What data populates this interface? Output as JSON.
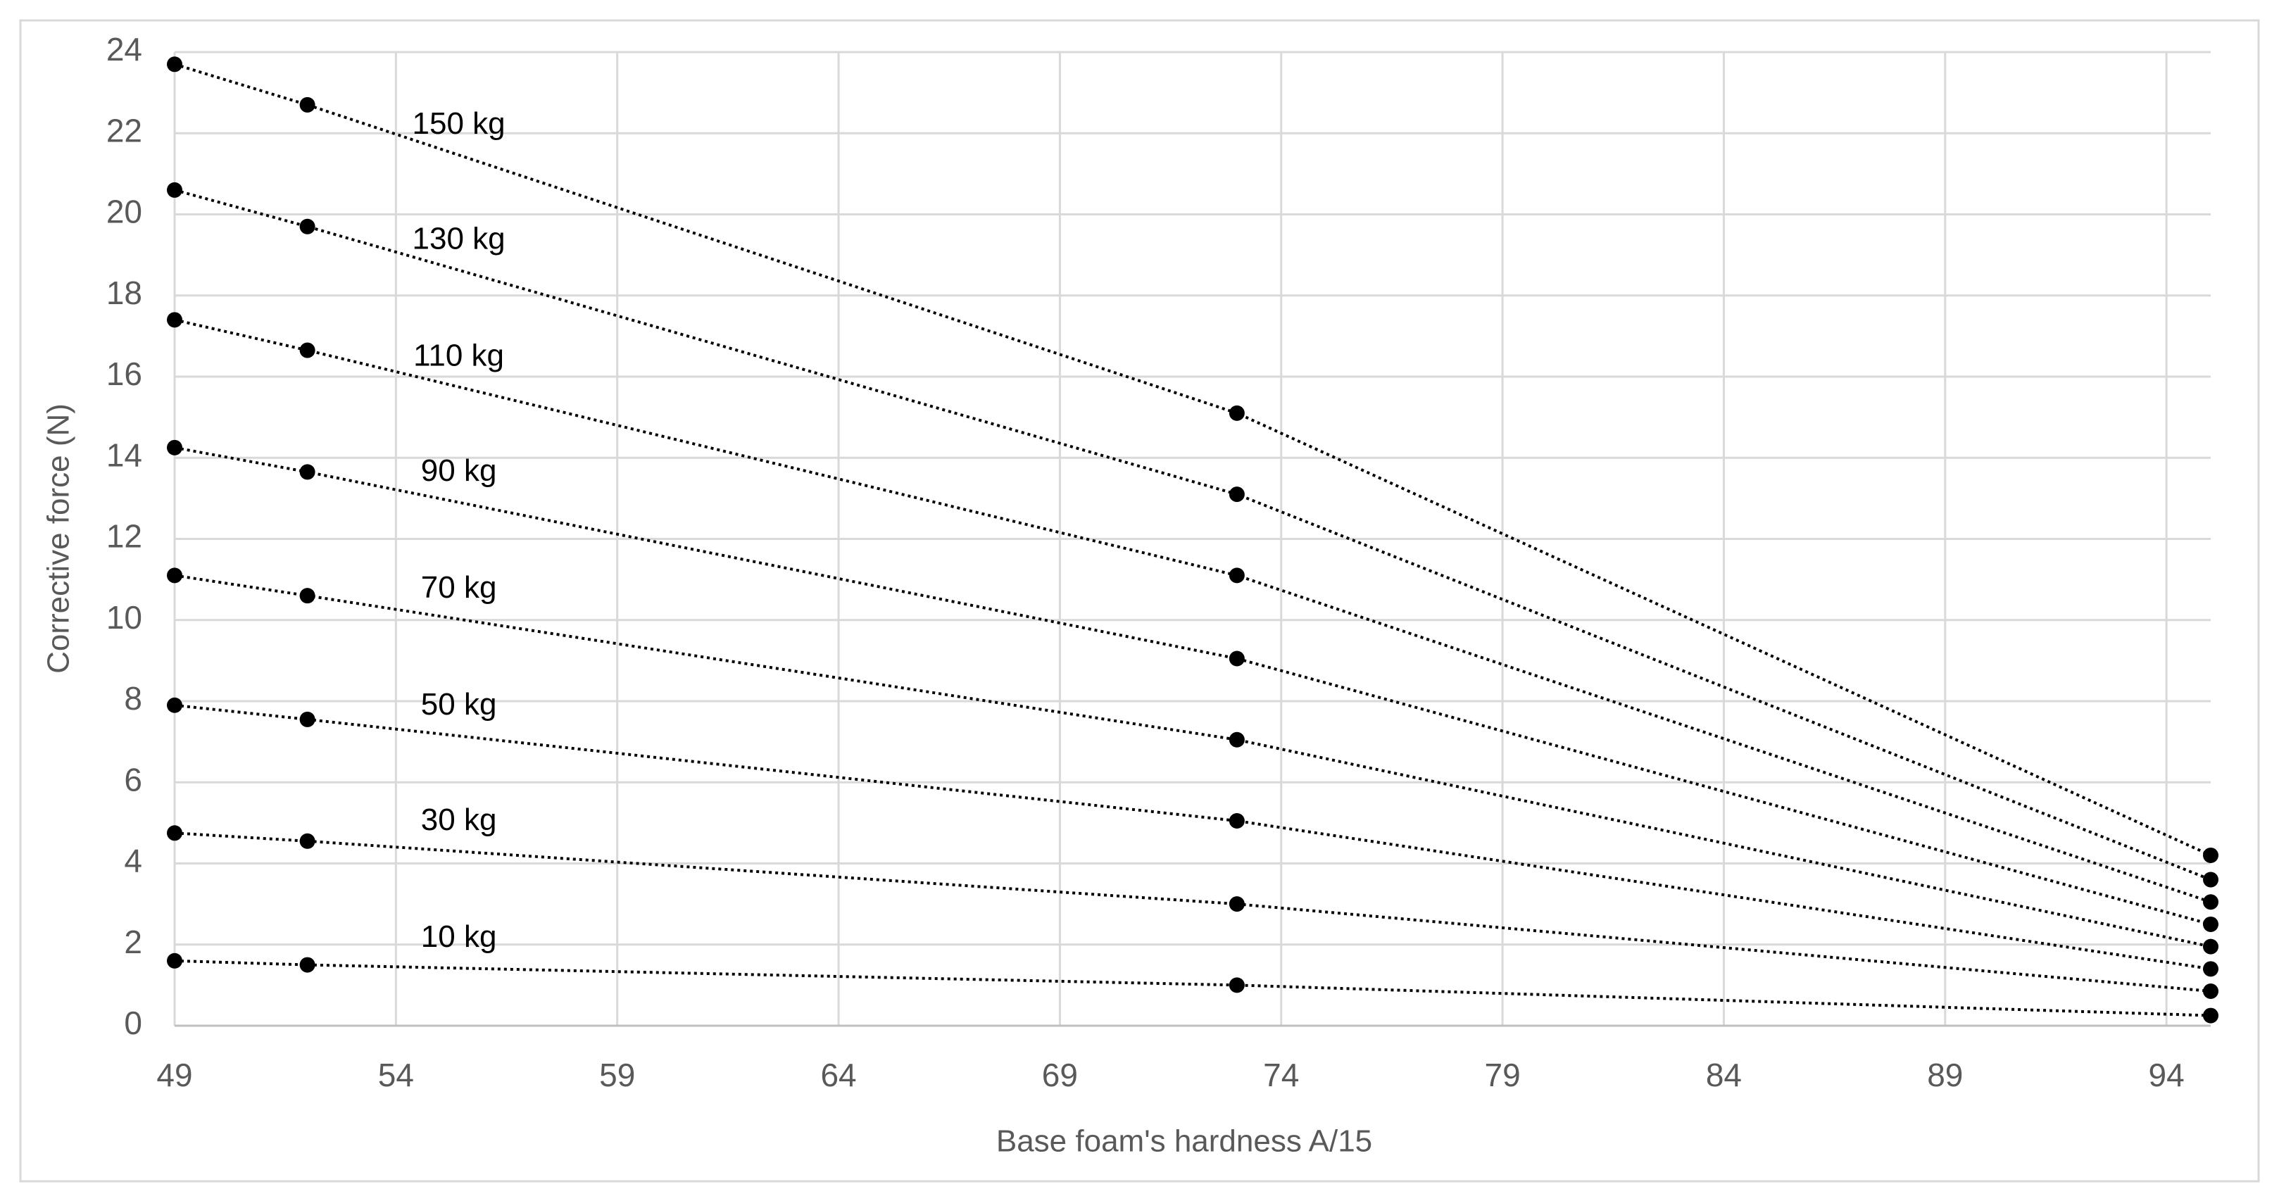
{
  "chart_data": {
    "type": "line",
    "x_label": "Base foam's hardness A/15",
    "y_label": "Corrective force (N)",
    "x": [
      49,
      52,
      73,
      95
    ],
    "series": [
      {
        "name": "150 kg",
        "color": "#000000",
        "values": [
          23.7,
          22.7,
          15.1,
          4.2
        ]
      },
      {
        "name": "130 kg",
        "color": "#000000",
        "values": [
          20.6,
          19.7,
          13.1,
          3.6
        ]
      },
      {
        "name": "110 kg",
        "color": "#000000",
        "values": [
          17.4,
          16.65,
          11.1,
          3.05
        ]
      },
      {
        "name": "90 kg",
        "color": "#000000",
        "values": [
          14.25,
          13.65,
          9.05,
          2.5
        ]
      },
      {
        "name": "70 kg",
        "color": "#000000",
        "values": [
          11.1,
          10.6,
          7.05,
          1.95
        ]
      },
      {
        "name": "50 kg",
        "color": "#000000",
        "values": [
          7.9,
          7.55,
          5.05,
          1.4
        ]
      },
      {
        "name": "30 kg",
        "color": "#000000",
        "values": [
          4.75,
          4.55,
          3.0,
          0.85
        ]
      },
      {
        "name": "10 kg",
        "color": "#000000",
        "values": [
          1.6,
          1.5,
          1.0,
          0.25
        ]
      }
    ],
    "xlim": [
      49,
      95
    ],
    "xticks": [
      49,
      54,
      59,
      64,
      69,
      74,
      79,
      84,
      89,
      94
    ],
    "ylim": [
      0,
      24
    ],
    "yticks": [
      0,
      2,
      4,
      6,
      8,
      10,
      12,
      14,
      16,
      18,
      20,
      22,
      24
    ],
    "grid": true
  }
}
